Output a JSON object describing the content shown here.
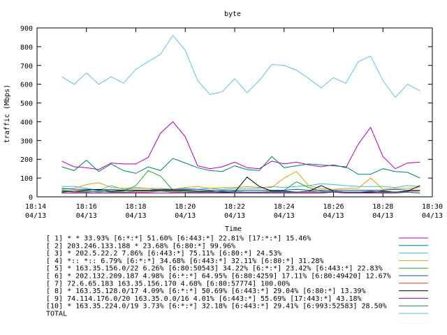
{
  "chart_data": {
    "type": "line",
    "title": "byte",
    "xlabel": "Time",
    "ylabel": "traffic (Mbps)",
    "ylim": [
      0,
      900
    ],
    "yticks": [
      0,
      100,
      200,
      300,
      400,
      500,
      600,
      700,
      800,
      900
    ],
    "xlim": [
      "18:14",
      "18:30"
    ],
    "xticks": [
      {
        "time": "18:14",
        "date": "04/13"
      },
      {
        "time": "18:16",
        "date": "04/13"
      },
      {
        "time": "18:18",
        "date": "04/13"
      },
      {
        "time": "18:20",
        "date": "04/13"
      },
      {
        "time": "18:22",
        "date": "04/13"
      },
      {
        "time": "18:24",
        "date": "04/13"
      },
      {
        "time": "18:26",
        "date": "04/13"
      },
      {
        "time": "18:28",
        "date": "04/13"
      },
      {
        "time": "18:30",
        "date": "04/13"
      }
    ],
    "grid": false,
    "legend_position": "bottom",
    "x": [
      "18:15:00",
      "18:15:30",
      "18:16:00",
      "18:16:30",
      "18:17:00",
      "18:17:30",
      "18:18:00",
      "18:18:30",
      "18:19:00",
      "18:19:30",
      "18:20:00",
      "18:20:30",
      "18:21:00",
      "18:21:30",
      "18:22:00",
      "18:22:30",
      "18:23:00",
      "18:23:30",
      "18:24:00",
      "18:24:30",
      "18:25:00",
      "18:25:30",
      "18:26:00",
      "18:26:30",
      "18:27:00",
      "18:27:30",
      "18:28:00",
      "18:28:30",
      "18:29:00",
      "18:29:30"
    ],
    "series": [
      {
        "name": "[ 1] * * 33.93%  [6:*:*] 51.60% [6:443:*] 22.81% [17:*:*] 15.46%",
        "color": "#b000b0",
        "values": [
          190,
          160,
          155,
          145,
          180,
          175,
          175,
          210,
          340,
          400,
          320,
          165,
          150,
          160,
          185,
          155,
          150,
          190,
          175,
          185,
          170,
          160,
          170,
          155,
          280,
          370,
          215,
          150,
          180,
          185
        ]
      },
      {
        "name": "[ 2] 203.246.133.188 * 23.68%  [6:80:*] 99.96%",
        "color": "#00806e",
        "values": [
          160,
          140,
          195,
          135,
          175,
          140,
          125,
          160,
          140,
          205,
          180,
          155,
          140,
          135,
          165,
          145,
          140,
          215,
          155,
          165,
          175,
          170,
          165,
          160,
          120,
          120,
          150,
          135,
          130,
          100
        ]
      },
      {
        "name": "[ 3] * 202.5.22.2 7.86%  [6:443:*] 75.11% [6:80:*] 24.53%",
        "color": "#30c0e0",
        "values": [
          55,
          55,
          45,
          35,
          60,
          40,
          45,
          45,
          35,
          40,
          45,
          40,
          45,
          40,
          45,
          45,
          45,
          55,
          50,
          55,
          60,
          70,
          65,
          60,
          55,
          55,
          55,
          50,
          60,
          55
        ]
      },
      {
        "name": "[ 4] *:: *:: 6.79%  [6:*:*] 34.68% [6:443:*] 32.11% [6:80:*] 31.28%",
        "color": "#e0a000",
        "values": [
          40,
          45,
          65,
          75,
          50,
          45,
          50,
          45,
          45,
          40,
          50,
          55,
          45,
          50,
          50,
          55,
          50,
          50,
          100,
          135,
          60,
          45,
          40,
          45,
          45,
          100,
          40,
          45,
          45,
          50
        ]
      },
      {
        "name": "[ 5] * 163.35.156.0/22 6.26%  [6:80:50543] 34.22% [6:*:*] 23.42% [6:443:*] 22.83%",
        "color": "#30a030",
        "values": [
          35,
          30,
          30,
          25,
          30,
          30,
          60,
          140,
          110,
          35,
          30,
          30,
          25,
          25,
          30,
          25,
          25,
          30,
          35,
          80,
          50,
          30,
          25,
          25,
          25,
          25,
          25,
          25,
          30,
          35
        ]
      },
      {
        "name": "[ 6] * 202.132.209.187 4.98%  [6:*:*] 64.95% [6:80:4259] 17.11% [6:80:49420] 12.67%",
        "color": "#2040c0",
        "values": [
          45,
          40,
          40,
          35,
          40,
          35,
          35,
          35,
          40,
          40,
          40,
          40,
          35,
          35,
          35,
          35,
          35,
          35,
          35,
          40,
          35,
          35,
          35,
          35,
          35,
          35,
          35,
          40,
          35,
          35
        ]
      },
      {
        "name": "[ 7] 72.6.65.183 163.35.156.170 4.68%  [6:80:57774] 100.00%",
        "color": "#e03020",
        "values": [
          30,
          25,
          25,
          30,
          25,
          25,
          25,
          25,
          30,
          25,
          25,
          25,
          25,
          25,
          25,
          25,
          25,
          25,
          25,
          25,
          25,
          25,
          25,
          25,
          25,
          25,
          25,
          25,
          30,
          30
        ]
      },
      {
        "name": "[ 8] * 163.35.128.0/17 4.09%  [6:*:*] 50.69% [6:443:*] 29.04% [6:80:*] 13.39%",
        "color": "#000000",
        "values": [
          25,
          30,
          35,
          40,
          30,
          35,
          35,
          35,
          35,
          35,
          35,
          30,
          30,
          25,
          25,
          105,
          55,
          30,
          30,
          25,
          30,
          60,
          30,
          25,
          25,
          25,
          30,
          25,
          30,
          60
        ]
      },
      {
        "name": "[ 9] 74.114.176.0/20 163.35.0.0/16 4.01%  [6:443:*] 55.69% [17:443:*] 43.18%",
        "color": "#8000a0",
        "values": [
          20,
          20,
          20,
          20,
          20,
          20,
          20,
          20,
          20,
          20,
          20,
          20,
          20,
          20,
          20,
          20,
          20,
          20,
          20,
          20,
          20,
          20,
          25,
          20,
          20,
          20,
          20,
          20,
          25,
          20
        ]
      },
      {
        "name": "[10] * 163.35.224.0/19 3.73%  [6:*:*] 32.18% [6:443:*] 29.41% [6:993:52583] 28.50%",
        "color": "#108060",
        "values": [
          30,
          30,
          25,
          30,
          25,
          25,
          30,
          30,
          30,
          30,
          25,
          25,
          25,
          30,
          25,
          25,
          25,
          25,
          25,
          25,
          30,
          25,
          30,
          25,
          25,
          30,
          25,
          25,
          25,
          20
        ]
      },
      {
        "name": "TOTAL",
        "color": "#60c0e0",
        "values": [
          640,
          600,
          660,
          600,
          640,
          605,
          680,
          720,
          760,
          860,
          780,
          620,
          545,
          560,
          630,
          555,
          620,
          705,
          700,
          675,
          630,
          580,
          635,
          605,
          720,
          750,
          620,
          530,
          600,
          565
        ]
      }
    ]
  }
}
